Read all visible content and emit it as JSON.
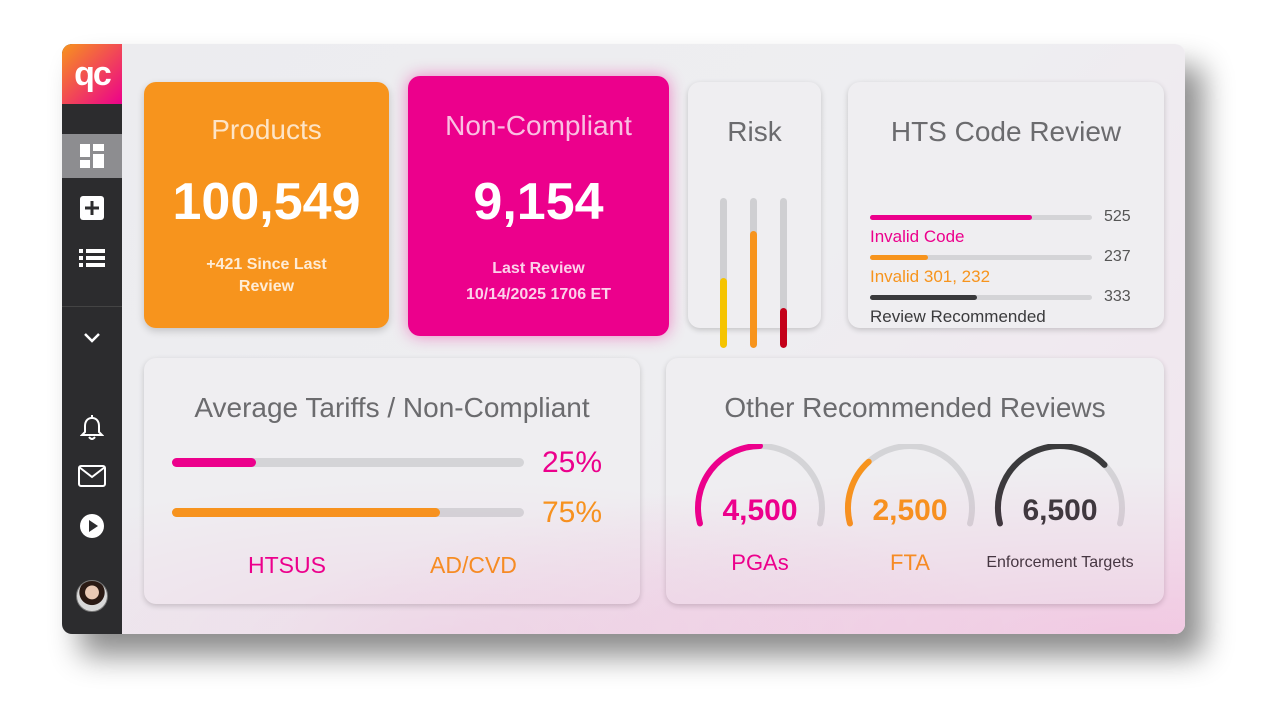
{
  "app": {
    "logo_text": "qc"
  },
  "sidebar": {
    "items": [
      {
        "icon": "dashboard-icon",
        "active": true
      },
      {
        "icon": "plus-square-icon"
      },
      {
        "icon": "list-icon"
      },
      {
        "icon": "chevron-down-icon"
      },
      {
        "icon": "bell-icon"
      },
      {
        "icon": "mail-icon"
      },
      {
        "icon": "play-circle-icon"
      }
    ]
  },
  "products": {
    "title": "Products",
    "value": "100,549",
    "sub_line1": "+421 Since Last",
    "sub_line2": "Review"
  },
  "noncompliant": {
    "title": "Non-Compliant",
    "value": "9,154",
    "sub_line1": "Last Review",
    "sub_line2": "10/14/2025 1706 ET"
  },
  "risk": {
    "title": "Risk",
    "bars": [
      {
        "level": 0.47,
        "color": "#f5c400"
      },
      {
        "level": 0.78,
        "color": "#f7941d"
      },
      {
        "level": 0.27,
        "color": "#c4001a"
      }
    ]
  },
  "hts": {
    "title": "HTS Code Review",
    "rows": [
      {
        "label": "Invalid Code",
        "count": "525",
        "fraction": 0.73,
        "color": "#ec008c"
      },
      {
        "label": "Invalid 301, 232",
        "count": "237",
        "fraction": 0.26,
        "color": "#f7941d"
      },
      {
        "label": "Review Recommended",
        "count": "333",
        "fraction": 0.48,
        "color": "#3a3a3c"
      }
    ]
  },
  "tariffs": {
    "title": "Average Tariffs / Non-Compliant",
    "rows": [
      {
        "percent": "25%",
        "fraction": 0.24,
        "color": "#ec008c"
      },
      {
        "percent": "75%",
        "fraction": 0.76,
        "color": "#f7941d"
      }
    ],
    "legend": [
      "HTSUS",
      "AD/CVD"
    ]
  },
  "other": {
    "title": "Other Recommended Reviews",
    "gauges": [
      {
        "value": "4,500",
        "label": "PGAs",
        "fraction": 0.5,
        "color": "#ec008c"
      },
      {
        "value": "2,500",
        "label": "FTA",
        "fraction": 0.3,
        "color": "#f7941d"
      },
      {
        "value": "6,500",
        "label": "Enforcement Targets",
        "fraction": 0.72,
        "color": "#3a3a3c"
      }
    ]
  }
}
